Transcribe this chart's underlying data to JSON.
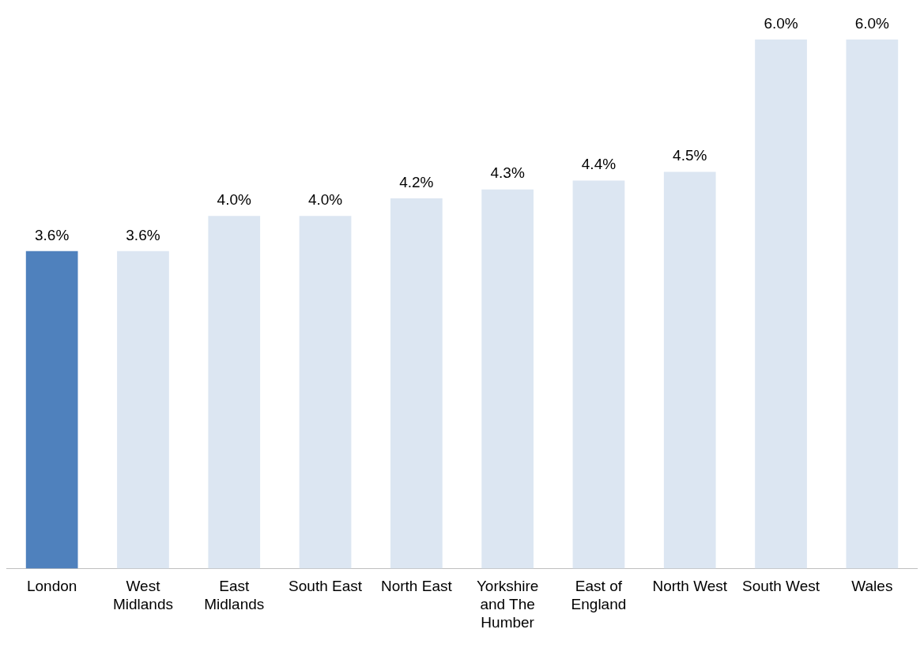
{
  "chart_data": {
    "type": "bar",
    "categories": [
      "London",
      "West Midlands",
      "East Midlands",
      "South East",
      "North East",
      "Yorkshire and The Humber",
      "East of England",
      "North West",
      "South West",
      "Wales"
    ],
    "values": [
      3.6,
      3.6,
      4.0,
      4.0,
      4.2,
      4.3,
      4.4,
      4.5,
      6.0,
      6.0
    ],
    "colors": [
      "#4f81bd",
      "#dce6f2",
      "#dce6f2",
      "#dce6f2",
      "#dce6f2",
      "#dce6f2",
      "#dce6f2",
      "#dce6f2",
      "#dce6f2",
      "#dce6f2"
    ],
    "value_labels": [
      "3.6%",
      "3.6%",
      "4.0%",
      "4.0%",
      "4.2%",
      "4.3%",
      "4.4%",
      "4.5%",
      "6.0%",
      "6.0%"
    ],
    "tick_labels": "x",
    "grid": false,
    "legend": false
  }
}
